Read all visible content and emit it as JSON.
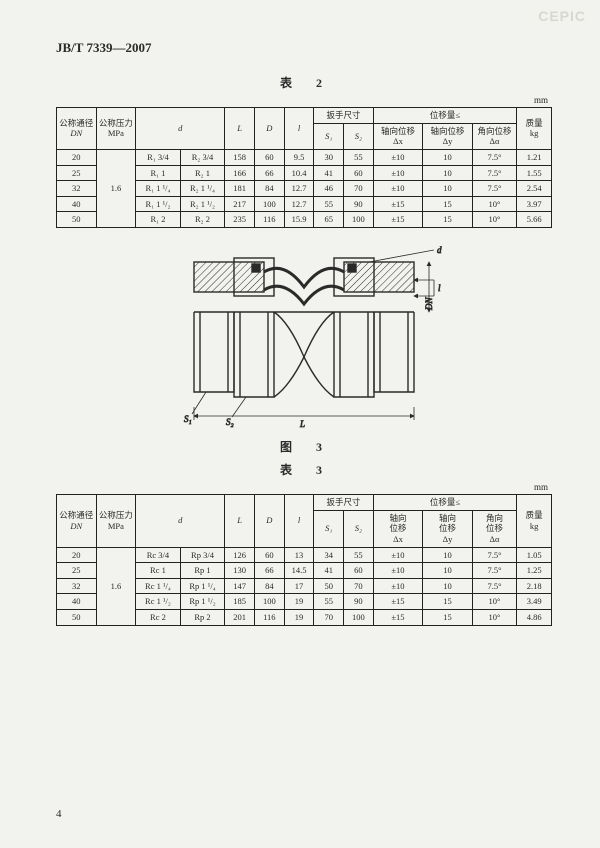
{
  "watermark": "CEPIC",
  "standard_id": "JB/T 7339—2007",
  "page_number": "4",
  "captions": {
    "table2": "表　2",
    "fig3": "图　3",
    "table3": "表　3",
    "unit": "mm"
  },
  "headers": {
    "dn": "公称通径",
    "dn_sym": "DN",
    "pn": "公称压力",
    "pn_unit": "MPa",
    "d": "d",
    "L": "L",
    "D": "D",
    "l": "l",
    "wrench": "扳手尺寸",
    "S1": "S₁",
    "S2": "S₂",
    "disp": "位移量≤",
    "ax": "轴向位移",
    "ax_sym": "Δx",
    "lat": "轴向位移",
    "lat_sym": "Δy",
    "ang": "角向位移",
    "ang_sym": "Δα",
    "ax2a": "轴向",
    "ax2b": "位移",
    "lat2a": "轴向",
    "lat2b": "位移",
    "ang2a": "角向",
    "ang2b": "位移",
    "mass": "质量",
    "mass_unit": "kg"
  },
  "table2": {
    "pressure": "1.6",
    "rows": [
      {
        "dn": "20",
        "d1": "R₁ 3/4",
        "d2": "R₂ 3/4",
        "L": "158",
        "D": "60",
        "l": "9.5",
        "S1": "30",
        "S2": "55",
        "dx": "±10",
        "dy": "10",
        "da": "7.5°",
        "kg": "1.21"
      },
      {
        "dn": "25",
        "d1": "R₁ 1",
        "d2": "R₂ 1",
        "L": "166",
        "D": "66",
        "l": "10.4",
        "S1": "41",
        "S2": "60",
        "dx": "±10",
        "dy": "10",
        "da": "7.5°",
        "kg": "1.55"
      },
      {
        "dn": "32",
        "d1": "R₁ 1 ¹/₄",
        "d2": "R₂ 1 ¹/₄",
        "L": "181",
        "D": "84",
        "l": "12.7",
        "S1": "46",
        "S2": "70",
        "dx": "±10",
        "dy": "10",
        "da": "7.5°",
        "kg": "2.54"
      },
      {
        "dn": "40",
        "d1": "R₁ 1 ¹/₂",
        "d2": "R₂ 1 ¹/₂",
        "L": "217",
        "D": "100",
        "l": "12.7",
        "S1": "55",
        "S2": "90",
        "dx": "±15",
        "dy": "15",
        "da": "10°",
        "kg": "3.97"
      },
      {
        "dn": "50",
        "d1": "R₁ 2",
        "d2": "R₂ 2",
        "L": "235",
        "D": "116",
        "l": "15.9",
        "S1": "65",
        "S2": "100",
        "dx": "±15",
        "dy": "15",
        "da": "10°",
        "kg": "5.66"
      }
    ]
  },
  "table3": {
    "pressure": "1.6",
    "rows": [
      {
        "dn": "20",
        "d1": "Rс 3/4",
        "d2": "Rр 3/4",
        "L": "126",
        "D": "60",
        "l": "13",
        "S1": "34",
        "S2": "55",
        "dx": "±10",
        "dy": "10",
        "da": "7.5°",
        "kg": "1.05"
      },
      {
        "dn": "25",
        "d1": "Rс 1",
        "d2": "Rр 1",
        "L": "130",
        "D": "66",
        "l": "14.5",
        "S1": "41",
        "S2": "60",
        "dx": "±10",
        "dy": "10",
        "da": "7.5°",
        "kg": "1.25"
      },
      {
        "dn": "32",
        "d1": "Rс 1 ¹/₄",
        "d2": "Rр 1 ¹/₄",
        "L": "147",
        "D": "84",
        "l": "17",
        "S1": "50",
        "S2": "70",
        "dx": "±10",
        "dy": "10",
        "da": "7.5°",
        "kg": "2.18"
      },
      {
        "dn": "40",
        "d1": "Rс 1 ¹/₂",
        "d2": "Rр 1 ¹/₂",
        "L": "185",
        "D": "100",
        "l": "19",
        "S1": "55",
        "S2": "90",
        "dx": "±15",
        "dy": "15",
        "da": "10°",
        "kg": "3.49"
      },
      {
        "dn": "50",
        "d1": "Rс 2",
        "d2": "Rр 2",
        "L": "201",
        "D": "116",
        "l": "19",
        "S1": "70",
        "S2": "100",
        "dx": "±15",
        "dy": "15",
        "da": "10°",
        "kg": "4.86"
      }
    ]
  },
  "figure": {
    "labels": {
      "d": "d",
      "l": "l",
      "DN": "DN",
      "L": "L",
      "S1": "S₁",
      "S2": "S₂"
    },
    "stroke": "#2a2a2a",
    "hatch": "#2a2a2a",
    "bg": "#f2f2ee"
  },
  "colwidths": {
    "dn": "8%",
    "pn": "8%",
    "d1": "9%",
    "d2": "9%",
    "L": "6%",
    "D": "6%",
    "l": "6%",
    "S1": "6%",
    "S2": "6%",
    "dx": "10%",
    "dy": "10%",
    "da": "9%",
    "kg": "7%"
  }
}
